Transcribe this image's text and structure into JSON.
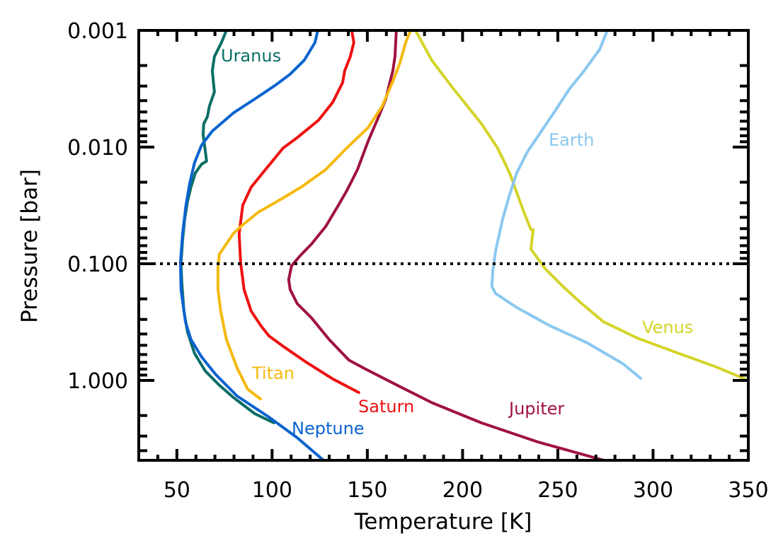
{
  "chart_data": {
    "type": "line",
    "title": "",
    "xlabel": "Temperature [K]",
    "ylabel": "Pressure [bar]",
    "xlim": [
      30,
      350
    ],
    "ylim": [
      0.001,
      4.84
    ],
    "yscale": "log",
    "y_inverted": true,
    "grid": false,
    "legend": "inline labels",
    "xticks": [
      50,
      100,
      150,
      200,
      250,
      300,
      350
    ],
    "xtick_labels": [
      "50",
      "100",
      "150",
      "200",
      "250",
      "300",
      "350"
    ],
    "yticks": [
      0.001,
      0.01,
      0.1,
      1.0
    ],
    "ytick_labels": [
      "0.001",
      "0.010",
      "0.100",
      "1.000"
    ],
    "reference_line": {
      "type": "horizontal",
      "y": 0.1,
      "style": "dotted",
      "color": "#000000"
    },
    "series": [
      {
        "name": "Uranus",
        "color": "#0b6e65",
        "points": [
          [
            76.0,
            0.001
          ],
          [
            73.4,
            0.00127
          ],
          [
            69.7,
            0.00168
          ],
          [
            68.6,
            0.00222
          ],
          [
            69.7,
            0.00337
          ],
          [
            67.1,
            0.00446
          ],
          [
            66.0,
            0.0055
          ],
          [
            64.1,
            0.0063
          ],
          [
            63.8,
            0.0078
          ],
          [
            64.9,
            0.0107
          ],
          [
            65.6,
            0.0132
          ],
          [
            63.0,
            0.014
          ],
          [
            59.7,
            0.0167
          ],
          [
            57.4,
            0.0221
          ],
          [
            55.6,
            0.0292
          ],
          [
            54.1,
            0.0415
          ],
          [
            53.0,
            0.063
          ],
          [
            52.2,
            0.098
          ],
          [
            52.6,
            0.145
          ],
          [
            53.7,
            0.254
          ],
          [
            55.6,
            0.386
          ],
          [
            59.3,
            0.587
          ],
          [
            64.9,
            0.83
          ],
          [
            72.3,
            1.1
          ],
          [
            79.7,
            1.4
          ],
          [
            90.9,
            1.93
          ],
          [
            100.9,
            2.31
          ]
        ]
      },
      {
        "name": "Neptune",
        "color": "#0a63cf",
        "points": [
          [
            124.0,
            0.001
          ],
          [
            122.5,
            0.00127
          ],
          [
            116.9,
            0.0018
          ],
          [
            109.5,
            0.00237
          ],
          [
            102.0,
            0.00293
          ],
          [
            90.9,
            0.00387
          ],
          [
            79.7,
            0.0051
          ],
          [
            68.6,
            0.0073
          ],
          [
            63.0,
            0.0096
          ],
          [
            59.3,
            0.0136
          ],
          [
            56.7,
            0.0207
          ],
          [
            54.8,
            0.0315
          ],
          [
            53.0,
            0.055
          ],
          [
            51.9,
            0.098
          ],
          [
            52.2,
            0.167
          ],
          [
            54.5,
            0.313
          ],
          [
            57.4,
            0.445
          ],
          [
            63.0,
            0.63
          ],
          [
            70.4,
            0.89
          ],
          [
            81.6,
            1.36
          ],
          [
            98.3,
            2.06
          ],
          [
            113.2,
            3.1
          ],
          [
            127.0,
            4.84
          ]
        ]
      },
      {
        "name": "Saturn",
        "color": "#ee1111",
        "points": [
          [
            141.8,
            0.001
          ],
          [
            142.9,
            0.00127
          ],
          [
            141.0,
            0.00168
          ],
          [
            138.1,
            0.00222
          ],
          [
            137.0,
            0.00281
          ],
          [
            131.8,
            0.00414
          ],
          [
            124.3,
            0.0059
          ],
          [
            113.2,
            0.0083
          ],
          [
            105.8,
            0.0102
          ],
          [
            96.5,
            0.0156
          ],
          [
            89.0,
            0.0221
          ],
          [
            84.6,
            0.0315
          ],
          [
            82.7,
            0.055
          ],
          [
            83.5,
            0.098
          ],
          [
            85.3,
            0.167
          ],
          [
            89.0,
            0.254
          ],
          [
            93.9,
            0.336
          ],
          [
            98.3,
            0.415
          ],
          [
            105.8,
            0.51
          ],
          [
            116.9,
            0.68
          ],
          [
            131.8,
            0.97
          ],
          [
            145.5,
            1.27
          ]
        ]
      },
      {
        "name": "Jupiter",
        "color": "#a0123f",
        "points": [
          [
            165.2,
            0.001
          ],
          [
            164.5,
            0.00168
          ],
          [
            163.4,
            0.00222
          ],
          [
            161.5,
            0.00293
          ],
          [
            159.7,
            0.00387
          ],
          [
            155.9,
            0.0055
          ],
          [
            150.4,
            0.0089
          ],
          [
            144.8,
            0.0156
          ],
          [
            139.2,
            0.0237
          ],
          [
            134.8,
            0.0315
          ],
          [
            128.1,
            0.048
          ],
          [
            120.6,
            0.068
          ],
          [
            115.1,
            0.084
          ],
          [
            110.2,
            0.104
          ],
          [
            108.7,
            0.137
          ],
          [
            109.5,
            0.167
          ],
          [
            113.2,
            0.22
          ],
          [
            120.6,
            0.29
          ],
          [
            129.9,
            0.445
          ],
          [
            140.3,
            0.67
          ],
          [
            148.5,
            0.79
          ],
          [
            165.2,
            1.09
          ],
          [
            183.8,
            1.55
          ],
          [
            209.9,
            2.31
          ],
          [
            239.6,
            3.37
          ],
          [
            274.2,
            4.84
          ]
        ]
      },
      {
        "name": "Titan",
        "color": "#f5b90f",
        "points": [
          [
            172.7,
            0.001
          ],
          [
            170.1,
            0.00127
          ],
          [
            167.1,
            0.0019
          ],
          [
            163.4,
            0.00273
          ],
          [
            157.8,
            0.00446
          ],
          [
            150.4,
            0.0068
          ],
          [
            139.2,
            0.0102
          ],
          [
            128.1,
            0.0156
          ],
          [
            116.2,
            0.0215
          ],
          [
            105.8,
            0.0273
          ],
          [
            92.8,
            0.0361
          ],
          [
            83.5,
            0.048
          ],
          [
            79.7,
            0.055
          ],
          [
            72.3,
            0.083
          ],
          [
            71.6,
            0.11
          ],
          [
            71.6,
            0.167
          ],
          [
            73.0,
            0.254
          ],
          [
            76.0,
            0.445
          ],
          [
            81.6,
            0.78
          ],
          [
            87.2,
            1.19
          ],
          [
            93.9,
            1.44
          ]
        ]
      },
      {
        "name": "Venus",
        "color": "#d4d42a",
        "points": [
          [
            175.3,
            0.001
          ],
          [
            183.8,
            0.0018
          ],
          [
            195.0,
            0.00314
          ],
          [
            209.9,
            0.0063
          ],
          [
            218.4,
            0.0102
          ],
          [
            224.7,
            0.0167
          ],
          [
            232.2,
            0.0361
          ],
          [
            235.9,
            0.051
          ],
          [
            237.0,
            0.051
          ],
          [
            235.9,
            0.075
          ],
          [
            243.3,
            0.11
          ],
          [
            252.6,
            0.156
          ],
          [
            261.9,
            0.215
          ],
          [
            273.8,
            0.313
          ],
          [
            291.6,
            0.433
          ],
          [
            313.9,
            0.59
          ],
          [
            332.5,
            0.76
          ],
          [
            350.0,
            1.0
          ]
        ]
      },
      {
        "name": "Earth",
        "color": "#8ac8f0",
        "points": [
          [
            276.0,
            0.001
          ],
          [
            271.9,
            0.00146
          ],
          [
            263.8,
            0.00222
          ],
          [
            256.3,
            0.00314
          ],
          [
            248.9,
            0.0048
          ],
          [
            241.4,
            0.0073
          ],
          [
            234.0,
            0.011
          ],
          [
            228.4,
            0.0167
          ],
          [
            224.7,
            0.0255
          ],
          [
            221.0,
            0.0415
          ],
          [
            217.3,
            0.078
          ],
          [
            215.8,
            0.118
          ],
          [
            215.4,
            0.156
          ],
          [
            217.3,
            0.18
          ],
          [
            228.4,
            0.237
          ],
          [
            245.2,
            0.336
          ],
          [
            265.6,
            0.478
          ],
          [
            284.2,
            0.72
          ],
          [
            293.5,
            0.96
          ]
        ]
      }
    ]
  }
}
